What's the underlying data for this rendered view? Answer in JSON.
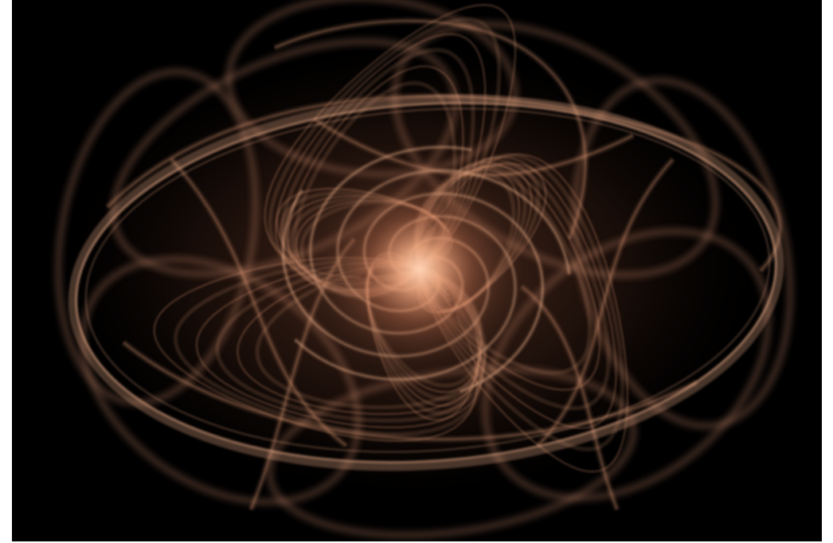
{
  "image": {
    "subject": "fractal-flame",
    "colors": {
      "background": "#000000",
      "page_margin": "#ffffff",
      "strand": "#e8a07a",
      "core": "#ffd2b4"
    }
  }
}
